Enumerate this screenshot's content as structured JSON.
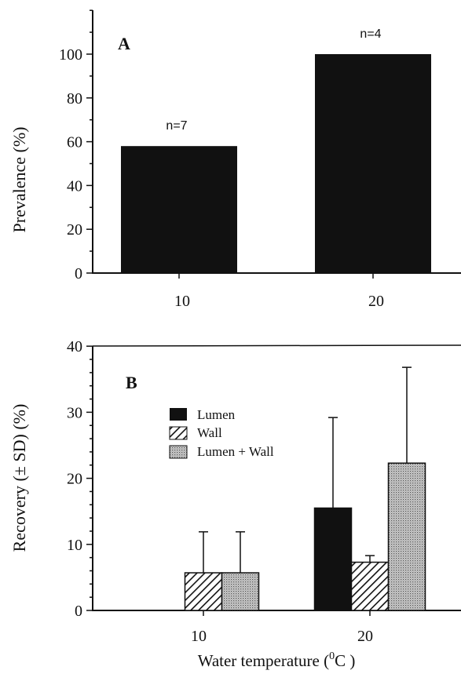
{
  "figure": {
    "panels": [
      {
        "label": "A",
        "ylabel": "Prevalence (%)",
        "yticks": [
          "0",
          "20",
          "40",
          "60",
          "80",
          "100"
        ],
        "xticks": [
          "10",
          "20"
        ]
      },
      {
        "label": "B",
        "ylabel": "Recovery (± SD) (%)",
        "yticks": [
          "0",
          "10",
          "20",
          "30",
          "40"
        ],
        "xticks": [
          "10",
          "20"
        ],
        "legend": [
          "Lumen",
          "Wall",
          "Lumen + Wall"
        ]
      }
    ],
    "xlabel_main": "Water temperature (",
    "xlabel_sup": "0",
    "xlabel_unit": "C )"
  },
  "chart_data": [
    {
      "type": "bar",
      "panel": "A",
      "title": "",
      "xlabel": "",
      "ylabel": "Prevalence (%)",
      "ylim": [
        0,
        100
      ],
      "grid": false,
      "categories": [
        "10",
        "20"
      ],
      "values": [
        58,
        100
      ],
      "annotations": [
        "n=7",
        "n=4"
      ]
    },
    {
      "type": "bar",
      "panel": "B",
      "title": "",
      "xlabel": "Water temperature (0C )",
      "ylabel": "Recovery (± SD) (%)",
      "ylim": [
        0,
        40
      ],
      "grid": false,
      "legend_position": "top-left",
      "categories": [
        "10",
        "20"
      ],
      "series": [
        {
          "name": "Lumen",
          "values": [
            0,
            15.5
          ],
          "sd": [
            0,
            13.7
          ],
          "fill": "solid"
        },
        {
          "name": "Wall",
          "values": [
            5.7,
            7.3
          ],
          "sd": [
            6.2,
            1.0
          ],
          "fill": "hatched"
        },
        {
          "name": "Lumen + Wall",
          "values": [
            5.7,
            22.3
          ],
          "sd": [
            6.2,
            14.5
          ],
          "fill": "stippled"
        }
      ]
    }
  ]
}
